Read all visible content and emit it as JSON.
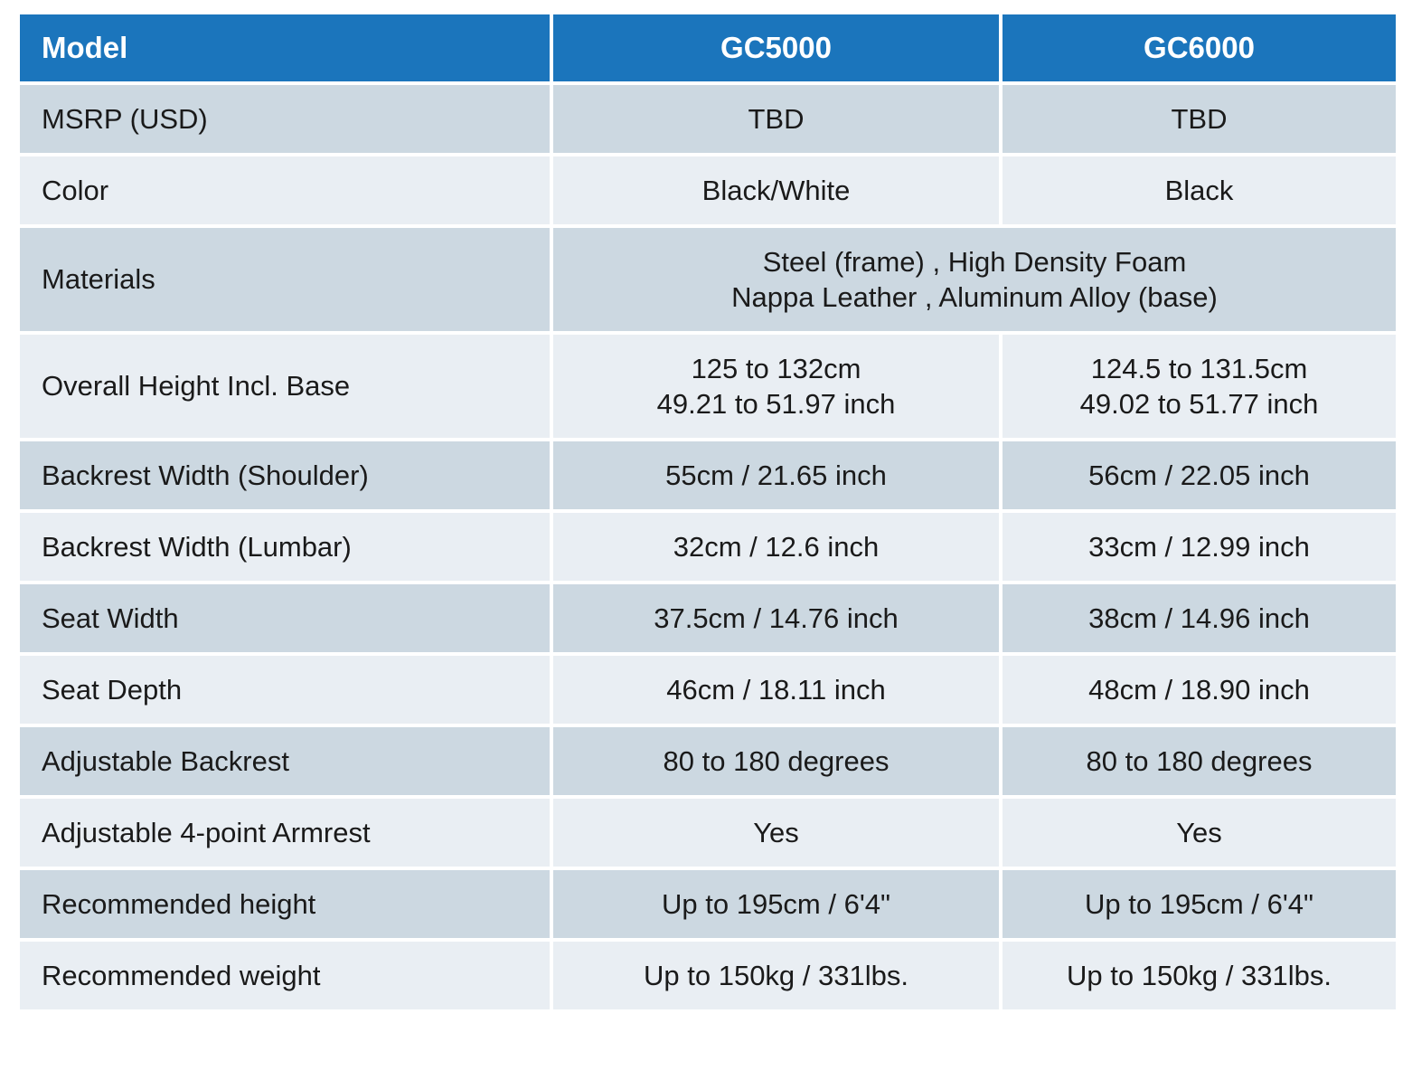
{
  "colors": {
    "header_bg": "#1B75BC",
    "header_text": "#FFFFFF",
    "row_dark": "#CCD8E1",
    "row_light": "#E9EEF3",
    "body_text": "#1A1A1A",
    "grid": "#FFFFFF"
  },
  "table": {
    "header": [
      "Model",
      "GC5000",
      "GC6000"
    ],
    "rows": [
      {
        "label": "MSRP (USD)",
        "gc5000": "TBD",
        "gc6000": "TBD"
      },
      {
        "label": "Color",
        "gc5000": "Black/White",
        "gc6000": "Black"
      },
      {
        "label": "Materials",
        "span_lines": [
          "Steel (frame) , High Density Foam",
          "Nappa Leather , Aluminum Alloy (base)"
        ]
      },
      {
        "label": "Overall Height Incl. Base",
        "gc5000_lines": [
          "125 to 132cm",
          "49.21 to 51.97 inch"
        ],
        "gc6000_lines": [
          "124.5 to 131.5cm",
          "49.02 to 51.77 inch"
        ]
      },
      {
        "label": "Backrest Width (Shoulder)",
        "gc5000": "55cm / 21.65 inch",
        "gc6000": "56cm / 22.05 inch"
      },
      {
        "label": "Backrest Width (Lumbar)",
        "gc5000": "32cm / 12.6 inch",
        "gc6000": "33cm / 12.99 inch"
      },
      {
        "label": "Seat Width",
        "gc5000": "37.5cm / 14.76 inch",
        "gc6000": "38cm / 14.96 inch"
      },
      {
        "label": "Seat Depth",
        "gc5000": "46cm / 18.11 inch",
        "gc6000": "48cm / 18.90 inch"
      },
      {
        "label": "Adjustable Backrest",
        "gc5000": "80 to 180 degrees",
        "gc6000": "80 to 180 degrees"
      },
      {
        "label": "Adjustable 4-point Armrest",
        "gc5000": "Yes",
        "gc6000": "Yes"
      },
      {
        "label": "Recommended height",
        "gc5000": "Up to 195cm / 6'4\"",
        "gc6000": "Up to 195cm / 6'4\""
      },
      {
        "label": "Recommended weight",
        "gc5000": "Up to 150kg / 331lbs.",
        "gc6000": "Up to 150kg / 331lbs."
      }
    ]
  }
}
